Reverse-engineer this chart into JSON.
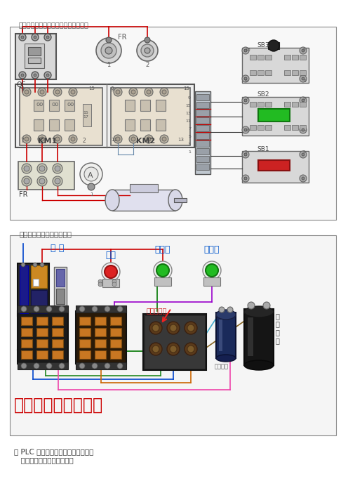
{
  "title1": "交流接触器控制电机正反转实物接线图",
  "title2": "单相电机正反转接线实物图",
  "bottom_text1": "用 PLC 电机正反转控制原理图及程序",
  "bottom_text2": "   三相异步电机的正反转控制",
  "big_text": "单相电机顺逆转控制",
  "label_zero_fire": "零 火",
  "label_stop": "停止",
  "label_forward": "顺启动",
  "label_reverse": "逆启动",
  "label_motor_box": "电机接线盒",
  "label_run_cap": "运行电容",
  "label_start_cap_v": "启\n动\n电\n容",
  "label_qf": "QF",
  "label_fr": "FR",
  "label_km1": "KM1",
  "label_km2": "KM2",
  "label_sb1": "SB1",
  "label_sb2": "SB2",
  "label_sb3": "SB3",
  "label_fr_top": "FR",
  "bg_color": "#ffffff",
  "fig_width": 4.96,
  "fig_height": 7.02,
  "dpi": 100
}
